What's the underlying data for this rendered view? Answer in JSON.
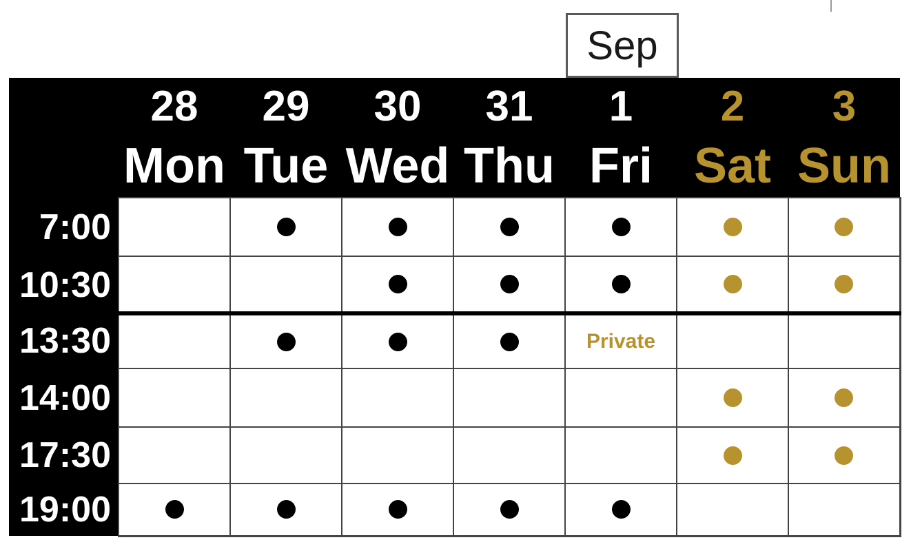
{
  "month_box": {
    "label": "Sep"
  },
  "colors": {
    "gold": "#b6932e",
    "weekday_dot": "#000000",
    "header_bg": "#000000",
    "header_text": "#ffffff",
    "grid_line": "#444444"
  },
  "header": {
    "days": [
      {
        "date": "28",
        "name": "Mon",
        "weekend": false
      },
      {
        "date": "29",
        "name": "Tue",
        "weekend": false
      },
      {
        "date": "30",
        "name": "Wed",
        "weekend": false
      },
      {
        "date": "31",
        "name": "Thu",
        "weekend": false
      },
      {
        "date": "1",
        "name": "Fri",
        "weekend": false
      },
      {
        "date": "2",
        "name": "Sat",
        "weekend": true
      },
      {
        "date": "3",
        "name": "Sun",
        "weekend": true
      }
    ]
  },
  "schedule": {
    "rows": [
      {
        "time": "7:00",
        "separator_above": false,
        "cells": [
          "none",
          "dot",
          "dot",
          "dot",
          "dot",
          "dot",
          "dot"
        ]
      },
      {
        "time": "10:30",
        "separator_above": false,
        "cells": [
          "none",
          "none",
          "dot",
          "dot",
          "dot",
          "dot",
          "dot"
        ]
      },
      {
        "time": "13:30",
        "separator_above": true,
        "cells": [
          "none",
          "dot",
          "dot",
          "dot",
          "text",
          "none",
          "none"
        ],
        "text_label": "Private"
      },
      {
        "time": "14:00",
        "separator_above": false,
        "cells": [
          "none",
          "none",
          "none",
          "none",
          "none",
          "dot",
          "dot"
        ]
      },
      {
        "time": "17:30",
        "separator_above": false,
        "cells": [
          "none",
          "none",
          "none",
          "none",
          "none",
          "dot",
          "dot"
        ]
      },
      {
        "time": "19:00",
        "separator_above": false,
        "cells": [
          "dot",
          "dot",
          "dot",
          "dot",
          "dot",
          "none",
          "none"
        ]
      }
    ]
  }
}
